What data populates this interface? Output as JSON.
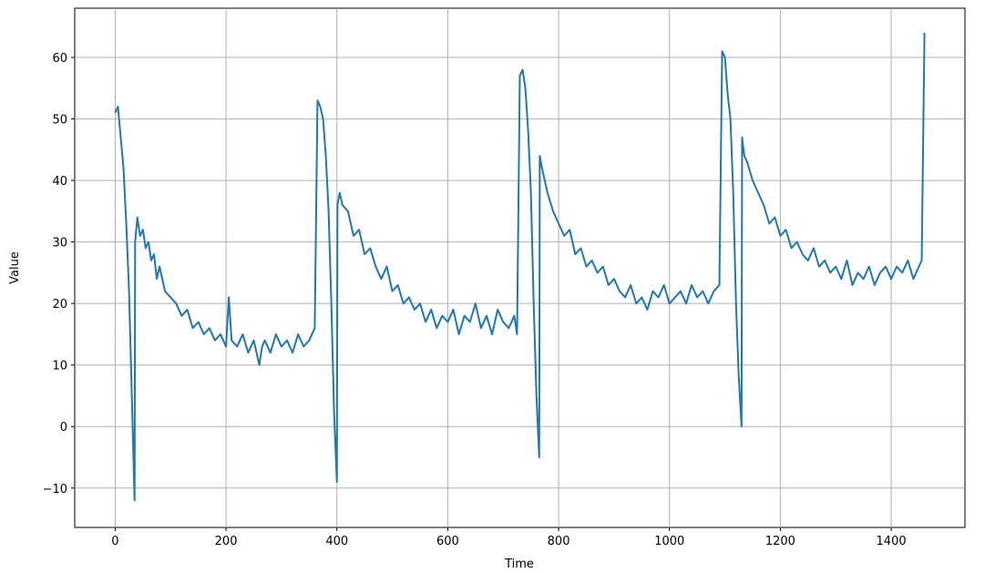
{
  "chart_data": {
    "type": "line",
    "x_label": "Time",
    "y_label": "Value",
    "color": "#1f77b4",
    "grid": true,
    "xlim": [
      -73,
      1533
    ],
    "ylim": [
      -16.4,
      68.0
    ],
    "xticks": [
      0,
      200,
      400,
      600,
      800,
      1000,
      1200,
      1400
    ],
    "yticks": [
      {
        "value": -10,
        "label": "−10"
      },
      0,
      10,
      20,
      30,
      40,
      50,
      60
    ],
    "x": [
      0,
      5,
      10,
      15,
      20,
      25,
      30,
      35,
      36,
      40,
      45,
      50,
      55,
      60,
      65,
      70,
      75,
      80,
      90,
      100,
      110,
      120,
      130,
      140,
      150,
      160,
      170,
      180,
      190,
      200,
      205,
      210,
      220,
      230,
      240,
      250,
      260,
      265,
      270,
      280,
      290,
      300,
      310,
      320,
      330,
      340,
      350,
      360,
      365,
      370,
      375,
      380,
      385,
      390,
      395,
      400,
      401,
      405,
      410,
      420,
      430,
      440,
      450,
      460,
      470,
      480,
      490,
      500,
      510,
      520,
      530,
      540,
      550,
      560,
      570,
      580,
      590,
      600,
      610,
      620,
      630,
      640,
      650,
      660,
      670,
      680,
      690,
      700,
      710,
      720,
      725,
      730,
      735,
      740,
      745,
      750,
      755,
      760,
      765,
      766,
      770,
      775,
      780,
      790,
      800,
      810,
      820,
      830,
      840,
      850,
      860,
      870,
      880,
      890,
      900,
      910,
      920,
      930,
      940,
      950,
      960,
      970,
      980,
      990,
      1000,
      1010,
      1020,
      1030,
      1040,
      1050,
      1060,
      1070,
      1080,
      1090,
      1095,
      1100,
      1105,
      1110,
      1115,
      1120,
      1125,
      1130,
      1131,
      1135,
      1140,
      1150,
      1160,
      1170,
      1180,
      1190,
      1200,
      1210,
      1220,
      1230,
      1240,
      1250,
      1260,
      1270,
      1280,
      1290,
      1300,
      1310,
      1320,
      1330,
      1340,
      1350,
      1360,
      1370,
      1380,
      1390,
      1400,
      1410,
      1420,
      1430,
      1440,
      1450,
      1455,
      1460
    ],
    "values": [
      51,
      52,
      47,
      42,
      33,
      22,
      5,
      -12,
      30,
      34,
      31,
      32,
      29,
      30,
      27,
      28,
      24,
      26,
      22,
      21,
      20,
      18,
      19,
      16,
      17,
      15,
      16,
      14,
      15,
      13,
      21,
      14,
      13,
      15,
      12,
      14,
      10,
      13,
      14,
      12,
      15,
      13,
      14,
      12,
      15,
      13,
      14,
      16,
      53,
      52,
      50,
      44,
      35,
      20,
      2,
      -9,
      36,
      38,
      36,
      35,
      31,
      32,
      28,
      29,
      26,
      24,
      26,
      22,
      23,
      20,
      21,
      19,
      20,
      17,
      19,
      16,
      18,
      17,
      19,
      15,
      18,
      17,
      20,
      16,
      18,
      15,
      19,
      17,
      16,
      18,
      15,
      57,
      58,
      55,
      48,
      38,
      20,
      5,
      -5,
      44,
      42,
      40,
      38,
      35,
      33,
      31,
      32,
      28,
      29,
      26,
      27,
      25,
      26,
      23,
      24,
      22,
      21,
      23,
      20,
      21,
      19,
      22,
      21,
      23,
      20,
      21,
      22,
      20,
      23,
      21,
      22,
      20,
      22,
      23,
      61,
      60,
      54,
      50,
      38,
      20,
      8,
      0,
      47,
      44,
      43,
      40,
      38,
      36,
      33,
      34,
      31,
      32,
      29,
      30,
      28,
      27,
      29,
      26,
      27,
      25,
      26,
      24,
      27,
      23,
      25,
      24,
      26,
      23,
      25,
      26,
      24,
      26,
      25,
      27,
      24,
      26,
      27,
      64
    ]
  }
}
